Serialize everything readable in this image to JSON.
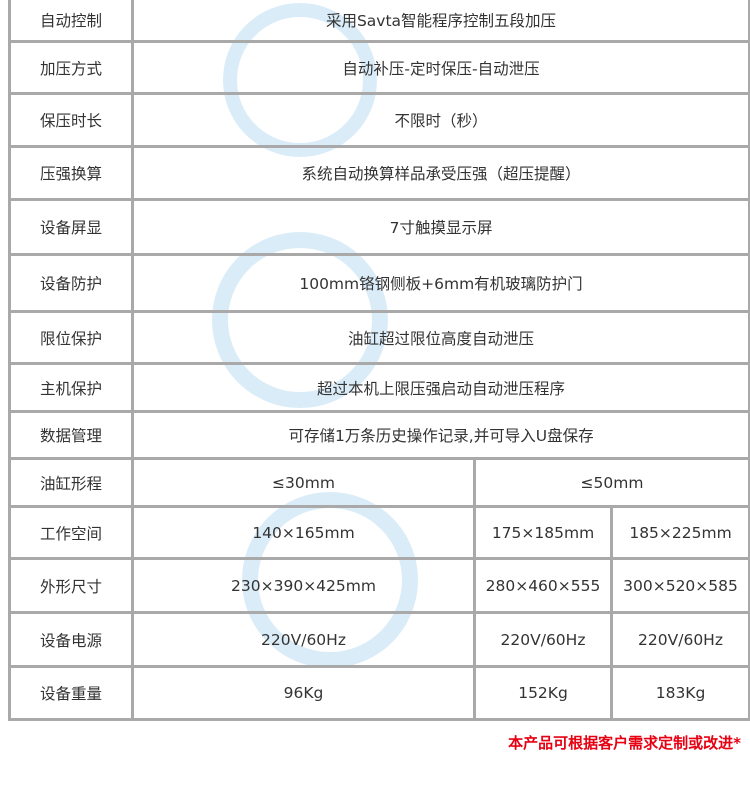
{
  "rows": [
    {
      "label": "自动控制",
      "value": "采用Savta智能程序控制五段加压"
    },
    {
      "label": "加压方式",
      "value": "自动补压-定时保压-自动泄压"
    },
    {
      "label": "保压时长",
      "value": "不限时（秒）"
    },
    {
      "label": "压强换算",
      "value": "系统自动换算样品承受压强（超压提醒）"
    },
    {
      "label": "设备屏显",
      "value": "7寸触摸显示屏"
    },
    {
      "label": "设备防护",
      "value": "100mm铬钢侧板+6mm有机玻璃防护门"
    },
    {
      "label": "限位保护",
      "value": "油缸超过限位高度自动泄压"
    },
    {
      "label": "主机保护",
      "value": "超过本机上限压强启动自动泄压程序"
    },
    {
      "label": "数据管理",
      "value": "可存储1万条历史操作记录,并可导入U盘保存"
    }
  ],
  "stroke": {
    "label": "油缸形程",
    "a": "≤30mm",
    "b": "≤50mm"
  },
  "multi_rows": [
    {
      "label": "工作空间",
      "a": "140×165mm",
      "b": "175×185mm",
      "c": "185×225mm"
    },
    {
      "label": "外形尺寸",
      "a": "230×390×425mm",
      "b": "280×460×555",
      "c": "300×520×585"
    },
    {
      "label": "设备电源",
      "a": "220V/60Hz",
      "b": "220V/60Hz",
      "c": "220V/60Hz"
    },
    {
      "label": "设备重量",
      "a": "96Kg",
      "b": "152Kg",
      "c": "183Kg"
    }
  ],
  "note": "本产品可根据客户需求定制或改进*",
  "colors": {
    "border": "#a9a9a9",
    "note": "#e60012",
    "watermark": "#3a9bd9"
  }
}
